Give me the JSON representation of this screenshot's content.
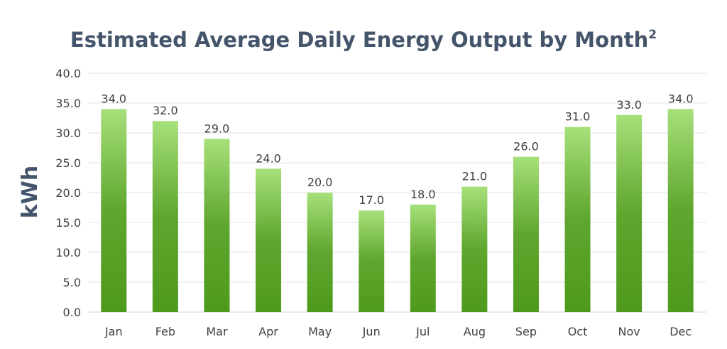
{
  "chart_data": {
    "type": "bar",
    "title": "Estimated Average Daily Energy Output by Month",
    "title_superscript": "2",
    "xlabel": "",
    "ylabel": "kWh",
    "categories": [
      "Jan",
      "Feb",
      "Mar",
      "Apr",
      "May",
      "Jun",
      "Jul",
      "Aug",
      "Sep",
      "Oct",
      "Nov",
      "Dec"
    ],
    "values": [
      34.0,
      32.0,
      29.0,
      24.0,
      20.0,
      17.0,
      18.0,
      21.0,
      26.0,
      31.0,
      33.0,
      34.0
    ],
    "value_labels": [
      "34.0",
      "32.0",
      "29.0",
      "24.0",
      "20.0",
      "17.0",
      "18.0",
      "21.0",
      "26.0",
      "31.0",
      "33.0",
      "34.0"
    ],
    "ylim": [
      0,
      40
    ],
    "yticks": [
      "0.0",
      "5.0",
      "10.0",
      "15.0",
      "20.0",
      "25.0",
      "30.0",
      "35.0",
      "40.0"
    ],
    "grid": true,
    "legend": "none",
    "colors": {
      "bar_top": "#a6e07a",
      "bar_mid": "#5fa62e",
      "bar_bottom": "#4e9a1c",
      "title": "#44546a",
      "text": "#404040"
    }
  }
}
